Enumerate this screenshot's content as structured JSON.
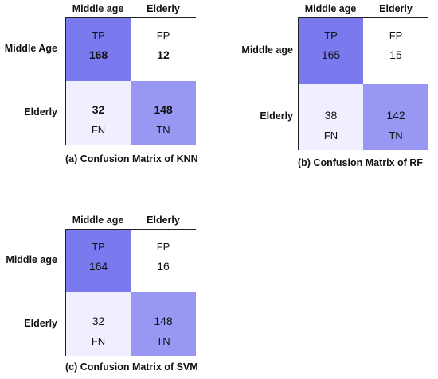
{
  "chart_data": [
    {
      "type": "heatmap",
      "title": "(a) Confusion Matrix of KNN",
      "columns": [
        "Middle age",
        "Elderly"
      ],
      "rows": [
        "Middle Age",
        "Elderly"
      ],
      "cells": [
        [
          {
            "label": "TP",
            "value": "168",
            "color": "#7a7aee"
          },
          {
            "label": "FP",
            "value": "12",
            "color": "#ffffff"
          }
        ],
        [
          {
            "label": "FN",
            "value": "32",
            "color": "#efefff"
          },
          {
            "label": "TN",
            "value": "148",
            "color": "#9898f4"
          }
        ]
      ],
      "bold_values": true
    },
    {
      "type": "heatmap",
      "title": "(b) Confusion Matrix of RF",
      "columns": [
        "Middle age",
        "Elderly"
      ],
      "rows": [
        "Middle age",
        "Elderly"
      ],
      "cells": [
        [
          {
            "label": "TP",
            "value": "165",
            "color": "#7a7aee"
          },
          {
            "label": "FP",
            "value": "15",
            "color": "#ffffff"
          }
        ],
        [
          {
            "label": "FN",
            "value": "38",
            "color": "#efefff"
          },
          {
            "label": "TN",
            "value": "142",
            "color": "#9898f4"
          }
        ]
      ],
      "bold_values": false
    },
    {
      "type": "heatmap",
      "title": "(c) Confusion Matrix of SVM",
      "columns": [
        "Middle age",
        "Elderly"
      ],
      "rows": [
        "Middle age",
        "Elderly"
      ],
      "cells": [
        [
          {
            "label": "TP",
            "value": "164",
            "color": "#7a7aee"
          },
          {
            "label": "FP",
            "value": "16",
            "color": "#ffffff"
          }
        ],
        [
          {
            "label": "FN",
            "value": "32",
            "color": "#efefff"
          },
          {
            "label": "TN",
            "value": "148",
            "color": "#9898f4"
          }
        ]
      ],
      "bold_values": false
    }
  ]
}
